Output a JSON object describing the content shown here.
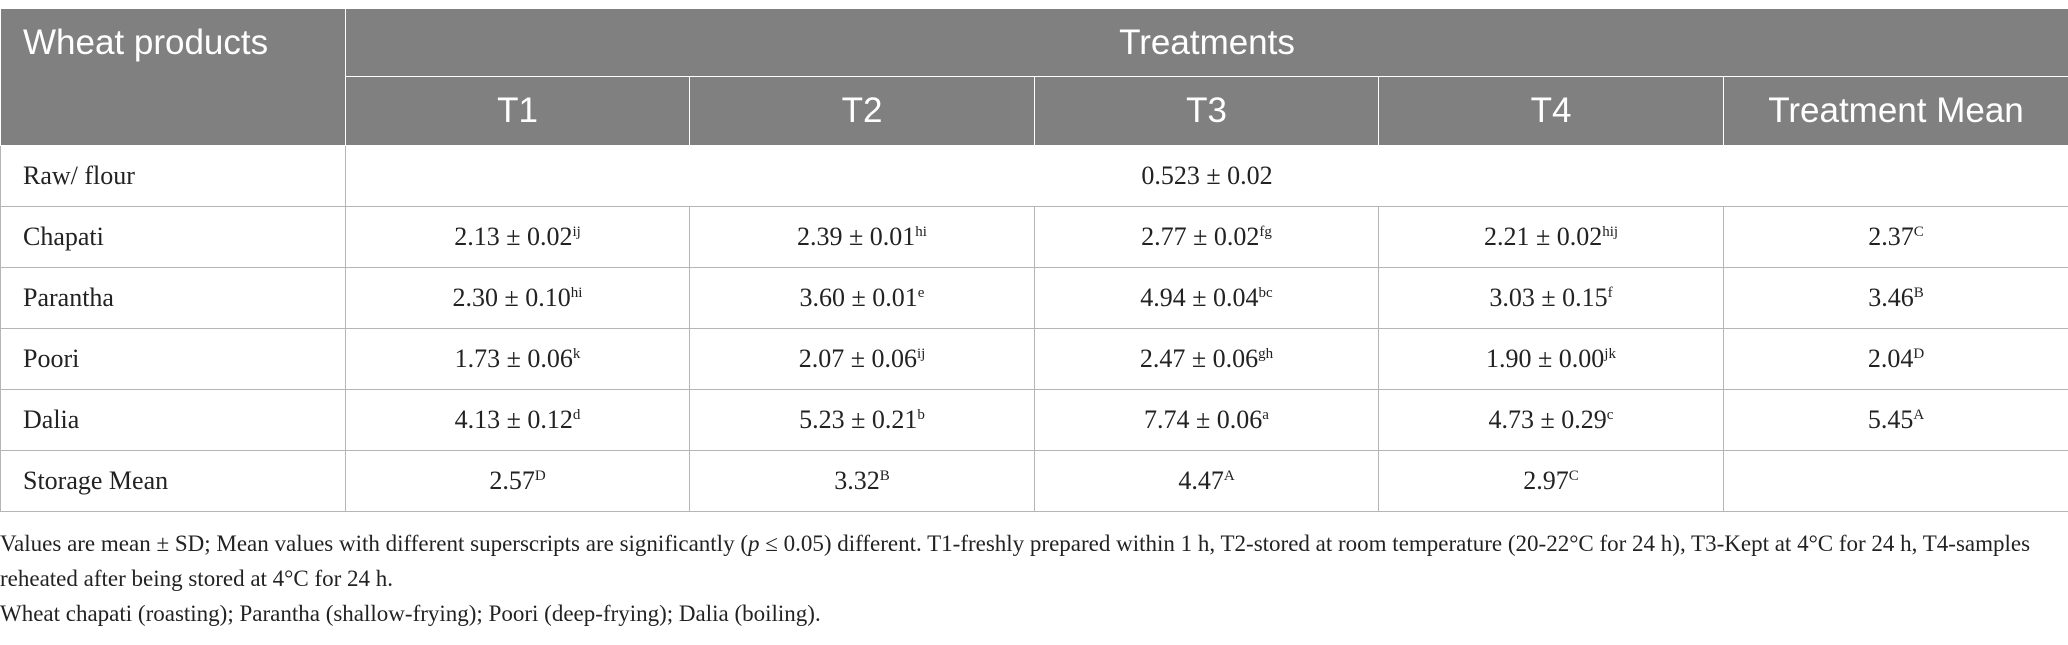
{
  "header": {
    "row_label": "Wheat products",
    "group_label": "Treatments",
    "columns": [
      "T1",
      "T2",
      "T3",
      "T4",
      "Treatment Mean"
    ]
  },
  "raw": {
    "label": "Raw/ flour",
    "value": "0.523 ± 0.02"
  },
  "rows": [
    {
      "label": "Chapati",
      "cells": [
        {
          "v": "2.13 ± 0.02",
          "s": "ij"
        },
        {
          "v": "2.39 ± 0.01",
          "s": "hi"
        },
        {
          "v": "2.77 ± 0.02",
          "s": "fg"
        },
        {
          "v": "2.21 ± 0.02",
          "s": "hij"
        },
        {
          "v": "2.37",
          "s": "C"
        }
      ]
    },
    {
      "label": "Parantha",
      "cells": [
        {
          "v": "2.30 ± 0.10",
          "s": "hi"
        },
        {
          "v": "3.60 ± 0.01",
          "s": "e"
        },
        {
          "v": "4.94 ± 0.04",
          "s": "bc"
        },
        {
          "v": "3.03 ± 0.15",
          "s": "f"
        },
        {
          "v": "3.46",
          "s": "B"
        }
      ]
    },
    {
      "label": "Poori",
      "cells": [
        {
          "v": "1.73 ± 0.06",
          "s": "k"
        },
        {
          "v": "2.07 ± 0.06",
          "s": "ij"
        },
        {
          "v": "2.47 ± 0.06",
          "s": "gh"
        },
        {
          "v": "1.90 ± 0.00",
          "s": "jk"
        },
        {
          "v": "2.04",
          "s": "D"
        }
      ]
    },
    {
      "label": "Dalia",
      "cells": [
        {
          "v": "4.13 ± 0.12",
          "s": "d"
        },
        {
          "v": "5.23 ± 0.21",
          "s": "b"
        },
        {
          "v": "7.74 ± 0.06",
          "s": "a"
        },
        {
          "v": "4.73 ± 0.29",
          "s": "c"
        },
        {
          "v": "5.45",
          "s": "A"
        }
      ]
    },
    {
      "label": "Storage Mean",
      "cells": [
        {
          "v": "2.57",
          "s": "D"
        },
        {
          "v": "3.32",
          "s": "B"
        },
        {
          "v": "4.47",
          "s": "A"
        },
        {
          "v": "2.97",
          "s": "C"
        },
        {
          "v": "",
          "s": ""
        }
      ]
    }
  ],
  "notes": {
    "line1_before_p": "Values are mean ± SD; Mean values with different superscripts are significantly (",
    "p_symbol": "p",
    "line1_after_p": " ≤ 0.05) different. T1-freshly prepared within 1 h, T2-stored at room temperature (20-22°C for 24 h), T3-Kept at 4°C for 24 h, T4-samples reheated after being stored at 4°C for 24 h.",
    "line2": "Wheat chapati (roasting); Parantha (shallow-frying); Poori (deep-frying); Dalia (boiling)."
  }
}
